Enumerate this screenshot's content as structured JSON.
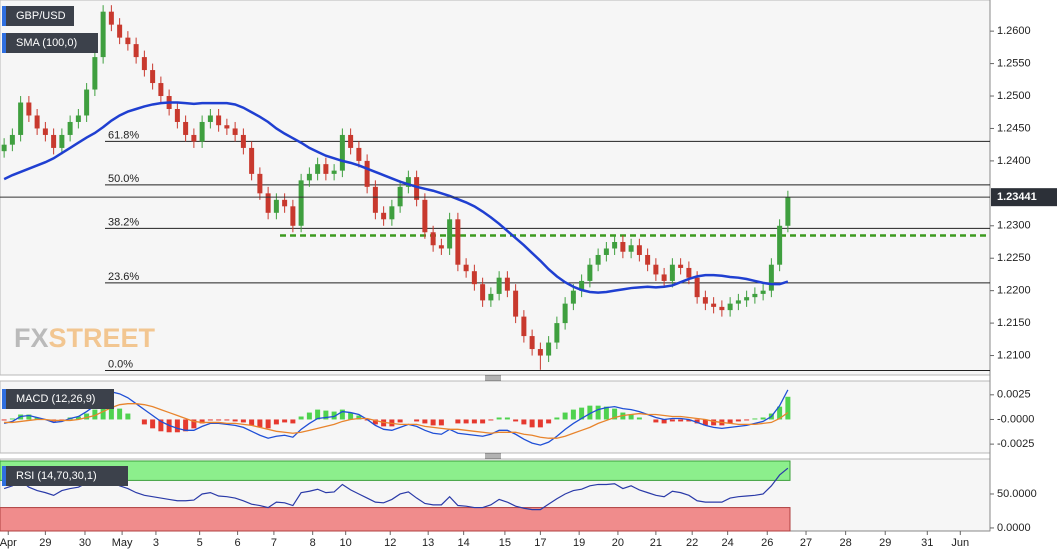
{
  "chart_data": [
    {
      "type": "candlestick",
      "title": "GBP/USD",
      "up_color": "#3f9f3f",
      "down_color": "#c8392e",
      "xlim": [
        -0.5,
        119.5
      ],
      "ylim": [
        1.207,
        1.2648
      ],
      "yticks": [
        {
          "value": 1.21,
          "label": "1.2100"
        },
        {
          "value": 1.215,
          "label": "1.2150"
        },
        {
          "value": 1.22,
          "label": "1.2200"
        },
        {
          "value": 1.225,
          "label": "1.2250"
        },
        {
          "value": 1.23,
          "label": "1.2300"
        },
        {
          "value": 1.24,
          "label": "1.2400"
        },
        {
          "value": 1.245,
          "label": "1.2450"
        },
        {
          "value": 1.25,
          "label": "1.2500"
        },
        {
          "value": 1.255,
          "label": "1.2550"
        },
        {
          "value": 1.26,
          "label": "1.2600"
        }
      ],
      "open": [
        1.2415,
        1.2425,
        1.244,
        1.249,
        1.247,
        1.245,
        1.244,
        1.242,
        1.244,
        1.246,
        1.247,
        1.251,
        1.256,
        1.263,
        1.261,
        1.259,
        1.258,
        1.256,
        1.254,
        1.252,
        1.25,
        1.248,
        1.246,
        1.244,
        1.243,
        1.246,
        1.247,
        1.2455,
        1.245,
        1.244,
        1.242,
        1.238,
        1.235,
        1.232,
        1.234,
        1.233,
        1.23,
        1.237,
        1.238,
        1.2395,
        1.238,
        1.2385,
        1.244,
        1.242,
        1.24,
        1.236,
        1.232,
        1.231,
        1.233,
        1.236,
        1.2375,
        1.234,
        1.229,
        1.227,
        1.2265,
        1.231,
        1.224,
        1.223,
        1.221,
        1.2185,
        1.2195,
        1.222,
        1.22,
        1.216,
        1.213,
        1.211,
        1.21,
        1.212,
        1.215,
        1.218,
        1.22,
        1.2215,
        1.224,
        1.2255,
        1.2265,
        1.2275,
        1.226,
        1.227,
        1.2255,
        1.224,
        1.2225,
        1.2215,
        1.224,
        1.2235,
        1.222,
        1.219,
        1.218,
        1.2175,
        1.217,
        1.218,
        1.2185,
        1.219,
        1.2195,
        1.22,
        1.224,
        1.23
      ],
      "high": [
        1.2435,
        1.245,
        1.25,
        1.25,
        1.248,
        1.246,
        1.245,
        1.245,
        1.247,
        1.248,
        1.252,
        1.257,
        1.264,
        1.264,
        1.262,
        1.26,
        1.259,
        1.257,
        1.255,
        1.253,
        1.251,
        1.249,
        1.247,
        1.245,
        1.247,
        1.248,
        1.248,
        1.2465,
        1.246,
        1.245,
        1.243,
        1.239,
        1.236,
        1.235,
        1.235,
        1.234,
        1.238,
        1.239,
        1.2405,
        1.2405,
        1.2395,
        1.245,
        1.245,
        1.243,
        1.241,
        1.237,
        1.233,
        1.234,
        1.237,
        1.2385,
        1.2385,
        1.235,
        1.23,
        1.228,
        1.232,
        1.232,
        1.225,
        1.224,
        1.222,
        1.2205,
        1.223,
        1.223,
        1.221,
        1.217,
        1.214,
        1.212,
        1.213,
        1.216,
        1.219,
        1.221,
        1.2225,
        1.225,
        1.2265,
        1.2275,
        1.2285,
        1.2285,
        1.228,
        1.228,
        1.2265,
        1.225,
        1.2235,
        1.225,
        1.225,
        1.2245,
        1.223,
        1.22,
        1.219,
        1.2185,
        1.219,
        1.2195,
        1.22,
        1.2205,
        1.221,
        1.225,
        1.231,
        1.2354
      ],
      "low": [
        1.2405,
        1.2415,
        1.243,
        1.246,
        1.244,
        1.243,
        1.241,
        1.241,
        1.243,
        1.245,
        1.246,
        1.25,
        1.255,
        1.26,
        1.258,
        1.257,
        1.255,
        1.253,
        1.251,
        1.249,
        1.247,
        1.245,
        1.243,
        1.242,
        1.242,
        1.245,
        1.2445,
        1.244,
        1.243,
        1.241,
        1.237,
        1.234,
        1.231,
        1.231,
        1.232,
        1.229,
        1.229,
        1.236,
        1.237,
        1.237,
        1.237,
        1.2375,
        1.241,
        1.239,
        1.235,
        1.231,
        1.23,
        1.23,
        1.232,
        1.235,
        1.233,
        1.228,
        1.226,
        1.2255,
        1.2255,
        1.223,
        1.222,
        1.22,
        1.2175,
        1.2175,
        1.2185,
        1.219,
        1.215,
        1.212,
        1.21,
        1.2078,
        1.209,
        1.211,
        1.214,
        1.217,
        1.219,
        1.2205,
        1.223,
        1.2245,
        1.2255,
        1.225,
        1.225,
        1.2245,
        1.223,
        1.2215,
        1.2205,
        1.2205,
        1.2225,
        1.221,
        1.218,
        1.217,
        1.2165,
        1.216,
        1.216,
        1.217,
        1.2175,
        1.218,
        1.2185,
        1.219,
        1.223,
        1.229
      ],
      "close": [
        1.2425,
        1.244,
        1.249,
        1.247,
        1.245,
        1.244,
        1.242,
        1.244,
        1.246,
        1.247,
        1.251,
        1.256,
        1.263,
        1.261,
        1.259,
        1.258,
        1.256,
        1.254,
        1.252,
        1.25,
        1.248,
        1.246,
        1.244,
        1.243,
        1.246,
        1.247,
        1.2455,
        1.245,
        1.244,
        1.242,
        1.238,
        1.235,
        1.232,
        1.234,
        1.233,
        1.23,
        1.237,
        1.238,
        1.2395,
        1.238,
        1.2385,
        1.244,
        1.242,
        1.24,
        1.236,
        1.232,
        1.231,
        1.233,
        1.236,
        1.2375,
        1.234,
        1.229,
        1.227,
        1.2265,
        1.231,
        1.224,
        1.223,
        1.221,
        1.2185,
        1.2195,
        1.222,
        1.22,
        1.216,
        1.213,
        1.211,
        1.21,
        1.212,
        1.215,
        1.218,
        1.22,
        1.2215,
        1.224,
        1.2255,
        1.2265,
        1.2275,
        1.226,
        1.227,
        1.2255,
        1.224,
        1.2225,
        1.2215,
        1.224,
        1.2235,
        1.222,
        1.219,
        1.218,
        1.2175,
        1.217,
        1.218,
        1.2185,
        1.219,
        1.2195,
        1.22,
        1.224,
        1.23,
        1.2344
      ],
      "series": [
        {
          "name": "SMA (100,0)",
          "color": "#1f3fd1",
          "values": [
            1.2372,
            1.2378,
            1.2383,
            1.2388,
            1.2393,
            1.2398,
            1.2404,
            1.2412,
            1.242,
            1.2428,
            1.2436,
            1.2443,
            1.2452,
            1.2462,
            1.247,
            1.2476,
            1.248,
            1.2484,
            1.2487,
            1.2489,
            1.249,
            1.249,
            1.2489,
            1.2488,
            1.2489,
            1.2489,
            1.2489,
            1.2489,
            1.2487,
            1.2482,
            1.2475,
            1.2468,
            1.246,
            1.245,
            1.2442,
            1.2435,
            1.2428,
            1.242,
            1.2414,
            1.2408,
            1.2404,
            1.24,
            1.2397,
            1.2393,
            1.2388,
            1.2383,
            1.2378,
            1.2373,
            1.2368,
            1.2364,
            1.236,
            1.2357,
            1.2354,
            1.235,
            1.2346,
            1.2341,
            1.2336,
            1.233,
            1.2322,
            1.2313,
            1.2303,
            1.2292,
            1.2281,
            1.227,
            1.2258,
            1.2246,
            1.2233,
            1.2222,
            1.2213,
            1.2206,
            1.2201,
            1.2198,
            1.2197,
            1.2198,
            1.22,
            1.2202,
            1.2204,
            1.2205,
            1.2206,
            1.2205,
            1.2206,
            1.2208,
            1.2213,
            1.2218,
            1.2222,
            1.2224,
            1.2224,
            1.2223,
            1.2221,
            1.222,
            1.2218,
            1.2215,
            1.2212,
            1.221,
            1.221,
            1.2214
          ]
        }
      ],
      "fib_levels": [
        {
          "label": "61.8%",
          "value": 1.243
        },
        {
          "label": "50.0%",
          "value": 1.2363
        },
        {
          "label": "38.2%",
          "value": 1.2296
        },
        {
          "label": "23.6%",
          "value": 1.2212
        },
        {
          "label": "0.0%",
          "value": 1.2077
        }
      ],
      "support": 1.2285,
      "support_color": "#3c9a1e",
      "last_price": 1.23441,
      "watermark": [
        "FX",
        "STREET"
      ]
    },
    {
      "type": "macd",
      "title": "MACD (12,26,9)",
      "xlim": [
        -0.5,
        119.5
      ],
      "ylim": [
        -0.0034,
        0.0039
      ],
      "yticks": [
        -0.0025,
        {
          "value": 0,
          "label": "-0.0000"
        },
        0.0025
      ],
      "series": [
        {
          "color": "#1f4fd6",
          "values": [
            -0.0004,
            -0.0002,
            0.0003,
            0.0004,
            0.0002,
            0,
            -0.0003,
            -0.0002,
            0.0001,
            0.0003,
            0.0008,
            0.0014,
            0.0024,
            0.0028,
            0.0026,
            0.0022,
            0.0016,
            0.001,
            0.0004,
            -0.0002,
            -0.0006,
            -0.0009,
            -0.0011,
            -0.0011,
            -0.0007,
            -0.0004,
            -0.0004,
            -0.0005,
            -0.0006,
            -0.0008,
            -0.0012,
            -0.0016,
            -0.0019,
            -0.0017,
            -0.0016,
            -0.0018,
            -0.001,
            -0.0004,
            0.0001,
            0.0002,
            0.0003,
            0.0008,
            0.0007,
            0.0005,
            0,
            -0.0006,
            -0.001,
            -0.0011,
            -0.0008,
            -0.0005,
            -0.0007,
            -0.0011,
            -0.0014,
            -0.0015,
            -0.001,
            -0.0014,
            -0.0015,
            -0.0016,
            -0.0017,
            -0.0015,
            -0.0011,
            -0.0011,
            -0.0015,
            -0.002,
            -0.0024,
            -0.0026,
            -0.0023,
            -0.0017,
            -0.001,
            -0.0004,
            0.0001,
            0.0006,
            0.001,
            0.0012,
            0.0013,
            0.0011,
            0.001,
            0.0008,
            0.0005,
            0.0002,
            0,
            0.0001,
            0.0001,
            0,
            -0.0003,
            -0.0006,
            -0.0008,
            -0.0009,
            -0.0008,
            -0.0007,
            -0.0006,
            -0.0004,
            -0.0002,
            0.0003,
            0.0014,
            0.003
          ]
        },
        {
          "color": "#e8842c",
          "values": [
            -0.0003,
            -0.0003,
            -0.0002,
            -0.0001,
            0,
            0,
            -0.0001,
            -0.0001,
            -0.0001,
            0,
            0.0002,
            0.0004,
            0.0008,
            0.0012,
            0.0015,
            0.0016,
            0.0016,
            0.0015,
            0.0013,
            0.001,
            0.0007,
            0.0004,
            0.0001,
            -0.0002,
            -0.0003,
            -0.0003,
            -0.0003,
            -0.0004,
            -0.0004,
            -0.0005,
            -0.0006,
            -0.0008,
            -0.001,
            -0.0012,
            -0.0013,
            -0.0014,
            -0.0013,
            -0.0011,
            -0.0009,
            -0.0007,
            -0.0005,
            -0.0002,
            0,
            0.0001,
            0.0001,
            -0.0001,
            -0.0003,
            -0.0004,
            -0.0005,
            -0.0005,
            -0.0005,
            -0.0007,
            -0.0008,
            -0.0009,
            -0.001,
            -0.001,
            -0.0011,
            -0.0012,
            -0.0013,
            -0.0014,
            -0.0013,
            -0.0013,
            -0.0013,
            -0.0015,
            -0.0016,
            -0.0018,
            -0.0019,
            -0.0019,
            -0.0017,
            -0.0014,
            -0.0011,
            -0.0008,
            -0.0004,
            -0.0001,
            0.0002,
            0.0004,
            0.0005,
            0.0006,
            0.0005,
            0.0005,
            0.0004,
            0.0003,
            0.0003,
            0.0002,
            0.0001,
            0,
            -0.0002,
            -0.0003,
            -0.0004,
            -0.0005,
            -0.0005,
            -0.0005,
            -0.0004,
            -0.0003,
            0.0001,
            0.0007
          ]
        }
      ],
      "histogram": {
        "up_color": "#4fd24f",
        "down_color": "#e5392f",
        "values": [
          -0.0001,
          0.0001,
          0.0005,
          0.0005,
          0.0002,
          0,
          -0.0002,
          -0.0001,
          0.0002,
          0.0003,
          0.0006,
          0.001,
          0.0016,
          0.0016,
          0.0011,
          0.0006,
          0,
          -0.0005,
          -0.0009,
          -0.0012,
          -0.0013,
          -0.0013,
          -0.0012,
          -0.0009,
          -0.0004,
          -0.0001,
          -0.0001,
          -0.0001,
          -0.0002,
          -0.0003,
          -0.0006,
          -0.0008,
          -0.0009,
          -0.0005,
          -0.0003,
          -0.0004,
          0.0003,
          0.0007,
          0.001,
          0.0009,
          0.0008,
          0.001,
          0.0007,
          0.0004,
          -0.0001,
          -0.0005,
          -0.0007,
          -0.0007,
          -0.0003,
          0,
          -0.0002,
          -0.0004,
          -0.0006,
          -0.0006,
          0,
          -0.0004,
          -0.0004,
          -0.0004,
          -0.0004,
          -0.0001,
          0.0002,
          0.0002,
          -0.0002,
          -0.0005,
          -0.0008,
          -0.0008,
          -0.0004,
          0.0002,
          0.0007,
          0.001,
          0.0012,
          0.0014,
          0.0014,
          0.0013,
          0.0011,
          0.0007,
          0.0005,
          0.0002,
          0,
          -0.0003,
          -0.0004,
          -0.0002,
          -0.0002,
          -0.0002,
          -0.0004,
          -0.0006,
          -0.0006,
          -0.0006,
          -0.0004,
          -0.0002,
          -0.0001,
          0.0001,
          0.0002,
          0.0006,
          0.0013,
          0.0023
        ]
      }
    },
    {
      "type": "rsi",
      "title": "RSI (14,70,30,1)",
      "color": "#2a3aa8",
      "overbought": 70,
      "oversold": 30,
      "overbought_color": "#8cef8c",
      "oversold_color": "#f08c8c",
      "xlim": [
        -0.5,
        119.5
      ],
      "ylim": [
        -4.5,
        101.5
      ],
      "yticks": [
        {
          "value": 0,
          "label": "0.0000"
        },
        {
          "value": 50,
          "label": "50.0000"
        }
      ],
      "values": [
        58,
        62,
        70,
        60,
        55,
        52,
        48,
        55,
        58,
        60,
        66,
        72,
        78,
        68,
        62,
        58,
        52,
        48,
        46,
        44,
        42,
        40,
        40,
        41,
        50,
        52,
        47,
        46,
        44,
        40,
        35,
        33,
        30,
        38,
        37,
        33,
        52,
        54,
        57,
        52,
        53,
        64,
        56,
        50,
        44,
        38,
        37,
        42,
        50,
        53,
        44,
        36,
        34,
        34,
        46,
        33,
        32,
        30,
        30,
        34,
        42,
        38,
        32,
        29,
        27,
        27,
        35,
        43,
        50,
        55,
        57,
        62,
        64,
        64,
        65,
        58,
        62,
        56,
        52,
        48,
        46,
        54,
        52,
        48,
        40,
        38,
        38,
        38,
        44,
        46,
        47,
        48,
        50,
        62,
        78,
        88
      ],
      "xticks": [
        {
          "value": 0.5,
          "label": "Apr"
        },
        {
          "value": 5.0,
          "label": "29"
        },
        {
          "value": 9.8,
          "label": "30"
        },
        {
          "value": 14.3,
          "label": "May"
        },
        {
          "value": 18.4,
          "label": "3"
        },
        {
          "value": 23.7,
          "label": "5"
        },
        {
          "value": 28.3,
          "label": "6"
        },
        {
          "value": 32.7,
          "label": "7"
        },
        {
          "value": 37.4,
          "label": "8"
        },
        {
          "value": 41.4,
          "label": "10"
        },
        {
          "value": 46.8,
          "label": "12"
        },
        {
          "value": 51.4,
          "label": "13"
        },
        {
          "value": 55.7,
          "label": "14"
        },
        {
          "value": 60.7,
          "label": "15"
        },
        {
          "value": 65.0,
          "label": "17"
        },
        {
          "value": 69.7,
          "label": "19"
        },
        {
          "value": 74.4,
          "label": "20"
        },
        {
          "value": 79.0,
          "label": "21"
        },
        {
          "value": 83.4,
          "label": "22"
        },
        {
          "value": 87.7,
          "label": "24"
        },
        {
          "value": 92.5,
          "label": "26"
        },
        {
          "value": 97.2,
          "label": "27"
        },
        {
          "value": 102.0,
          "label": "28"
        },
        {
          "value": 106.8,
          "label": "29"
        },
        {
          "value": 111.9,
          "label": "31"
        },
        {
          "value": 115.9,
          "label": "Jun"
        }
      ]
    }
  ]
}
